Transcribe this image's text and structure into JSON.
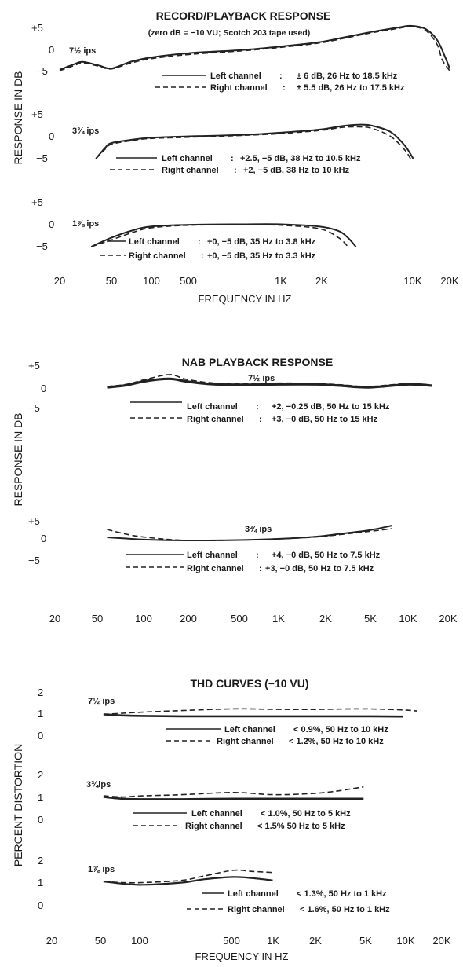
{
  "chart_data": [
    {
      "type": "line",
      "title": "RECORD/PLAYBACK RESPONSE",
      "subtitle": "(zero dB = −10 VU; Scotch 203 tape used)",
      "ylabel": "RESPONSE IN DB",
      "xlabel": "FREQUENCY IN HZ",
      "xscale": "log",
      "x_tick_labels": [
        "20",
        "50",
        "100",
        "500",
        "1K",
        "2K",
        "10K",
        "20K"
      ],
      "panels": [
        {
          "speed": "7½ ips",
          "y_ticks": [
            "+5",
            "0",
            "−5"
          ],
          "ylim": [
            -5,
            5
          ],
          "series": [
            {
              "name": "Left channel",
              "spec": "± 6 dB, 26 Hz to 18.5 kHz",
              "x": [
                20,
                26,
                30,
                40,
                50,
                70,
                100,
                200,
                500,
                1000,
                2000,
                3000,
                5000,
                8000,
                10000,
                13000,
                16000,
                18500,
                20000
              ],
              "y": [
                -4.8,
                -3.5,
                -3.0,
                -3.8,
                -4.5,
                -3.0,
                -2.0,
                -1.0,
                -0.3,
                0.5,
                1.5,
                2.5,
                3.8,
                4.8,
                5.2,
                4.5,
                2.0,
                -2.0,
                -4.5
              ]
            },
            {
              "name": "Right channel",
              "spec": "± 5.5 dB, 26 Hz to 17.5 kHz",
              "x": [
                20,
                26,
                30,
                40,
                50,
                70,
                100,
                200,
                500,
                1000,
                2000,
                3000,
                5000,
                8000,
                10000,
                13000,
                16000,
                17500,
                20000
              ],
              "y": [
                -5.0,
                -3.8,
                -3.2,
                -4.0,
                -4.6,
                -3.3,
                -2.3,
                -1.3,
                -0.5,
                0.3,
                1.3,
                2.3,
                3.6,
                4.6,
                5.0,
                4.2,
                1.0,
                -2.5,
                -5.0
              ]
            }
          ]
        },
        {
          "speed": "3¾ ips",
          "y_ticks": [
            "+5",
            "0",
            "−5"
          ],
          "ylim": [
            -5,
            5
          ],
          "series": [
            {
              "name": "Left channel",
              "spec": "+2.5, −5 dB, 38 Hz to 10.5 kHz",
              "x": [
                38,
                45,
                50,
                70,
                100,
                200,
                500,
                1000,
                2000,
                3000,
                4000,
                5000,
                7000,
                9000,
                10500
              ],
              "y": [
                -5.0,
                -2.5,
                -1.5,
                -0.8,
                -0.3,
                0.0,
                0.3,
                0.8,
                1.5,
                2.3,
                2.6,
                2.4,
                1.0,
                -2.0,
                -5.0
              ]
            },
            {
              "name": "Right channel",
              "spec": "+2, −5 dB, 38 Hz to 10 kHz",
              "x": [
                38,
                45,
                50,
                70,
                100,
                200,
                500,
                1000,
                2000,
                3000,
                4000,
                5000,
                7000,
                9000,
                10000
              ],
              "y": [
                -5.0,
                -2.8,
                -1.8,
                -1.0,
                -0.5,
                -0.2,
                0.2,
                0.6,
                1.3,
                2.0,
                2.1,
                1.8,
                0.0,
                -3.0,
                -5.0
              ]
            }
          ]
        },
        {
          "speed": "1⅞ ips",
          "y_ticks": [
            "+5",
            "0",
            "−5"
          ],
          "ylim": [
            -5,
            5
          ],
          "series": [
            {
              "name": "Left channel",
              "spec": "+0, −5 dB, 35 Hz to 3.8 kHz",
              "x": [
                35,
                50,
                70,
                100,
                200,
                500,
                1000,
                2000,
                2800,
                3300,
                3800
              ],
              "y": [
                -5.0,
                -3.0,
                -1.5,
                -0.5,
                -0.1,
                0.0,
                0.0,
                -0.5,
                -1.5,
                -3.0,
                -5.0
              ]
            },
            {
              "name": "Right channel",
              "spec": "+0, −5 dB, 35 Hz to 3.3 kHz",
              "x": [
                35,
                50,
                70,
                100,
                200,
                500,
                1000,
                2000,
                2800,
                3300
              ],
              "y": [
                -5.0,
                -3.5,
                -2.0,
                -0.8,
                -0.2,
                -0.1,
                -0.2,
                -1.0,
                -3.0,
                -5.0
              ]
            }
          ]
        }
      ]
    },
    {
      "type": "line",
      "title": "NAB PLAYBACK RESPONSE",
      "ylabel": "RESPONSE IN DB",
      "xscale": "log",
      "x_tick_labels": [
        "20",
        "50",
        "100",
        "200",
        "500",
        "1K",
        "2K",
        "5K",
        "10K",
        "20K"
      ],
      "panels": [
        {
          "speed": "7½ ips",
          "y_ticks": [
            "+5",
            "0",
            "−5"
          ],
          "ylim": [
            -5,
            5
          ],
          "series": [
            {
              "name": "Left channel",
              "spec": "+2, −0.25 dB, 50 Hz to 15 kHz",
              "x": [
                50,
                70,
                100,
                150,
                200,
                300,
                500,
                1000,
                2000,
                3000,
                5000,
                10000,
                15000
              ],
              "y": [
                -0.2,
                0.3,
                1.3,
                1.8,
                1.2,
                0.6,
                0.4,
                0.5,
                0.5,
                0.2,
                -0.2,
                0.5,
                0.2
              ]
            },
            {
              "name": "Right channel",
              "spec": "+3, −0 dB, 50 Hz to 15 kHz",
              "x": [
                50,
                70,
                100,
                150,
                200,
                300,
                500,
                1000,
                2000,
                3000,
                5000,
                10000,
                15000
              ],
              "y": [
                0.0,
                0.5,
                1.7,
                2.8,
                1.7,
                0.9,
                0.6,
                0.8,
                0.7,
                0.4,
                0.0,
                0.7,
                0.3
              ]
            }
          ]
        },
        {
          "speed": "3¾ ips",
          "y_ticks": [
            "+5",
            "0",
            "−5"
          ],
          "ylim": [
            -5,
            5
          ],
          "series": [
            {
              "name": "Left channel",
              "spec": "+4, −0 dB, 50 Hz to 7.5 kHz",
              "x": [
                50,
                70,
                100,
                200,
                500,
                1000,
                2000,
                3000,
                5000,
                7500
              ],
              "y": [
                0.8,
                0.5,
                0.2,
                0.0,
                0.1,
                0.4,
                1.0,
                1.7,
                2.6,
                3.8
              ]
            },
            {
              "name": "Right channel",
              "spec": "+3, −0 dB, 50 Hz to 7.5 kHz",
              "x": [
                50,
                70,
                100,
                200,
                500,
                1000,
                2000,
                3000,
                5000,
                7500
              ],
              "y": [
                2.8,
                1.6,
                0.8,
                0.0,
                0.1,
                0.4,
                0.9,
                1.5,
                2.3,
                3.0
              ]
            }
          ]
        }
      ]
    },
    {
      "type": "line",
      "title": "THD CURVES (−10 VU)",
      "ylabel": "PERCENT DISTORTION",
      "xlabel": "FREQUENCY IN HZ",
      "xscale": "log",
      "x_tick_labels": [
        "20",
        "50",
        "100",
        "500",
        "1K",
        "2K",
        "5K",
        "10K",
        "20K"
      ],
      "panels": [
        {
          "speed": "7½ ips",
          "y_ticks": [
            "2",
            "1",
            "0"
          ],
          "ylim": [
            0,
            2
          ],
          "series": [
            {
              "name": "Left channel",
              "spec": "< 0.9%, 50 Hz to 10 kHz",
              "x": [
                50,
                70,
                100,
                200,
                500,
                1000,
                2000,
                5000,
                10000
              ],
              "y": [
                0.95,
                0.9,
                0.88,
                0.86,
                0.86,
                0.86,
                0.86,
                0.86,
                0.85
              ]
            },
            {
              "name": "Right channel",
              "spec": "< 1.2%, 50 Hz to 10 kHz",
              "x": [
                50,
                70,
                100,
                200,
                500,
                1000,
                2000,
                5000,
                10000,
                13000
              ],
              "y": [
                0.95,
                1.0,
                1.05,
                1.12,
                1.2,
                1.18,
                1.17,
                1.2,
                1.15,
                1.1
              ]
            }
          ]
        },
        {
          "speed": "3¾ips",
          "y_ticks": [
            "2",
            "1",
            "0"
          ],
          "ylim": [
            0,
            2
          ],
          "series": [
            {
              "name": "Left channel",
              "spec": "< 1.0%, 50 Hz to 5 kHz",
              "x": [
                50,
                70,
                100,
                200,
                500,
                1000,
                2000,
                5000
              ],
              "y": [
                1.0,
                0.92,
                0.9,
                0.9,
                0.92,
                0.92,
                0.92,
                0.92
              ]
            },
            {
              "name": "Right channel",
              "spec": "< 1.5% 50 Hz to 5 kHz",
              "x": [
                50,
                70,
                100,
                200,
                500,
                1000,
                2000,
                3000,
                5000
              ],
              "y": [
                1.05,
                1.0,
                1.05,
                1.1,
                1.2,
                1.1,
                1.15,
                1.25,
                1.45
              ]
            }
          ]
        },
        {
          "speed": "1⅞ ips",
          "y_ticks": [
            "2",
            "1",
            "0"
          ],
          "ylim": [
            0,
            2
          ],
          "series": [
            {
              "name": "Left channel",
              "spec": "< 1.3%, 50 Hz to 1 kHz",
              "x": [
                50,
                70,
                100,
                200,
                300,
                500,
                700,
                1000
              ],
              "y": [
                1.05,
                0.95,
                0.9,
                1.0,
                1.15,
                1.25,
                1.2,
                1.1
              ]
            },
            {
              "name": "Right channel",
              "spec": "< 1.6%, 50 Hz to 1 kHz",
              "x": [
                50,
                70,
                100,
                200,
                300,
                500,
                700,
                1000
              ],
              "y": [
                1.05,
                1.0,
                1.0,
                1.1,
                1.3,
                1.55,
                1.5,
                1.45
              ]
            }
          ]
        }
      ]
    }
  ]
}
